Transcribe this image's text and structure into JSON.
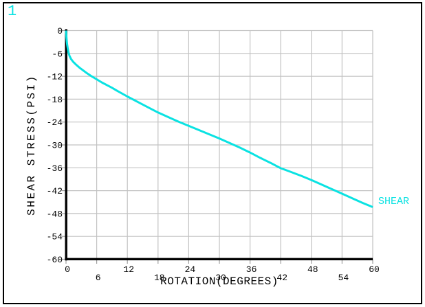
{
  "window": {
    "plot_number": "1"
  },
  "colors": {
    "accent_cyan": "#0ae2e2",
    "grid": "#c2c2c2",
    "tick": "#9e9e9e",
    "axis": "#000000",
    "background": "#ffffff"
  },
  "chart_data": {
    "type": "line",
    "title": "",
    "xlabel": "ROTATION(DEGREES)",
    "ylabel": "SHEAR STRESS(PSI)",
    "xlim": [
      0,
      60
    ],
    "ylim": [
      -60,
      0
    ],
    "x_ticks": [
      0,
      6,
      12,
      18,
      24,
      30,
      36,
      42,
      48,
      54,
      60
    ],
    "y_ticks": [
      0,
      -6,
      -12,
      -18,
      -24,
      -30,
      -36,
      -42,
      -48,
      -54,
      -60
    ],
    "grid": true,
    "legend_position": "right-of-curve-end",
    "series": [
      {
        "name": "SHEAR",
        "color": "#0ae2e2",
        "points": [
          [
            0,
            0
          ],
          [
            0.1,
            -2.0
          ],
          [
            0.2,
            -3.5
          ],
          [
            0.35,
            -4.8
          ],
          [
            0.5,
            -5.8
          ],
          [
            0.7,
            -6.7
          ],
          [
            1,
            -7.5
          ],
          [
            1.4,
            -8.2
          ],
          [
            2,
            -9.0
          ],
          [
            2.6,
            -9.7
          ],
          [
            3.3,
            -10.4
          ],
          [
            4,
            -11.1
          ],
          [
            5,
            -12.0
          ],
          [
            6,
            -12.8
          ],
          [
            7,
            -13.6
          ],
          [
            8,
            -14.3
          ],
          [
            9,
            -15.0
          ],
          [
            10,
            -15.8
          ],
          [
            12,
            -17.3
          ],
          [
            14,
            -18.7
          ],
          [
            16,
            -20.1
          ],
          [
            18,
            -21.5
          ],
          [
            20,
            -22.7
          ],
          [
            22,
            -23.9
          ],
          [
            24,
            -25.0
          ],
          [
            26,
            -26.1
          ],
          [
            28,
            -27.2
          ],
          [
            30,
            -28.3
          ],
          [
            32,
            -29.5
          ],
          [
            34,
            -30.7
          ],
          [
            36,
            -32.0
          ],
          [
            38,
            -33.4
          ],
          [
            40,
            -34.7
          ],
          [
            42,
            -36.1
          ],
          [
            44,
            -37.1
          ],
          [
            46,
            -38.1
          ],
          [
            48,
            -39.2
          ],
          [
            50,
            -40.4
          ],
          [
            52,
            -41.6
          ],
          [
            54,
            -42.8
          ],
          [
            56,
            -44.0
          ],
          [
            58,
            -45.2
          ],
          [
            60,
            -46.3
          ]
        ]
      }
    ]
  }
}
